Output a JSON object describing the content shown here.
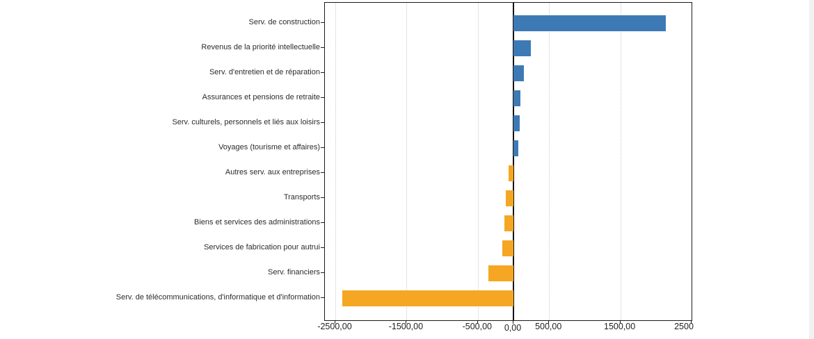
{
  "chart_data": {
    "type": "bar",
    "orientation": "horizontal",
    "title": "",
    "xlabel": "",
    "ylabel": "",
    "categories": [
      "Serv. de construction",
      "Revenus de la priorité intellectuelle",
      "Serv. d'entretien et de réparation",
      "Assurances et pensions de retraite",
      "Serv. culturels, personnels et liés aux loisirs",
      "Voyages (tourisme et affaires)",
      "Autres serv. aux entreprises",
      "Transports",
      "Biens et services des administrations",
      "Services de fabrication pour autrui",
      "Serv. financiers",
      "Serv. de télécommunications, d'informatique et d'information"
    ],
    "values": [
      2140,
      245,
      145,
      95,
      90,
      65,
      -65,
      -105,
      -125,
      -155,
      -355,
      -2400
    ],
    "positive_color": "#3D7AB5",
    "negative_color": "#F5A623",
    "x_ticks": [
      {
        "value": -2500,
        "label": "-2500,00"
      },
      {
        "value": -1500,
        "label": "-1500,00"
      },
      {
        "value": -500,
        "label": "-500,00"
      },
      {
        "value": 0,
        "label": "0,00"
      },
      {
        "value": 500,
        "label": "500,00"
      },
      {
        "value": 1500,
        "label": "1500,00"
      },
      {
        "value": 2500,
        "label": "2500"
      }
    ],
    "gridline_values": [
      -2500,
      -1500,
      -500,
      500,
      1500
    ],
    "xlim": [
      -2646,
      2500
    ],
    "grid": "vertical-dotted",
    "legend": "none",
    "zero_line": true
  }
}
